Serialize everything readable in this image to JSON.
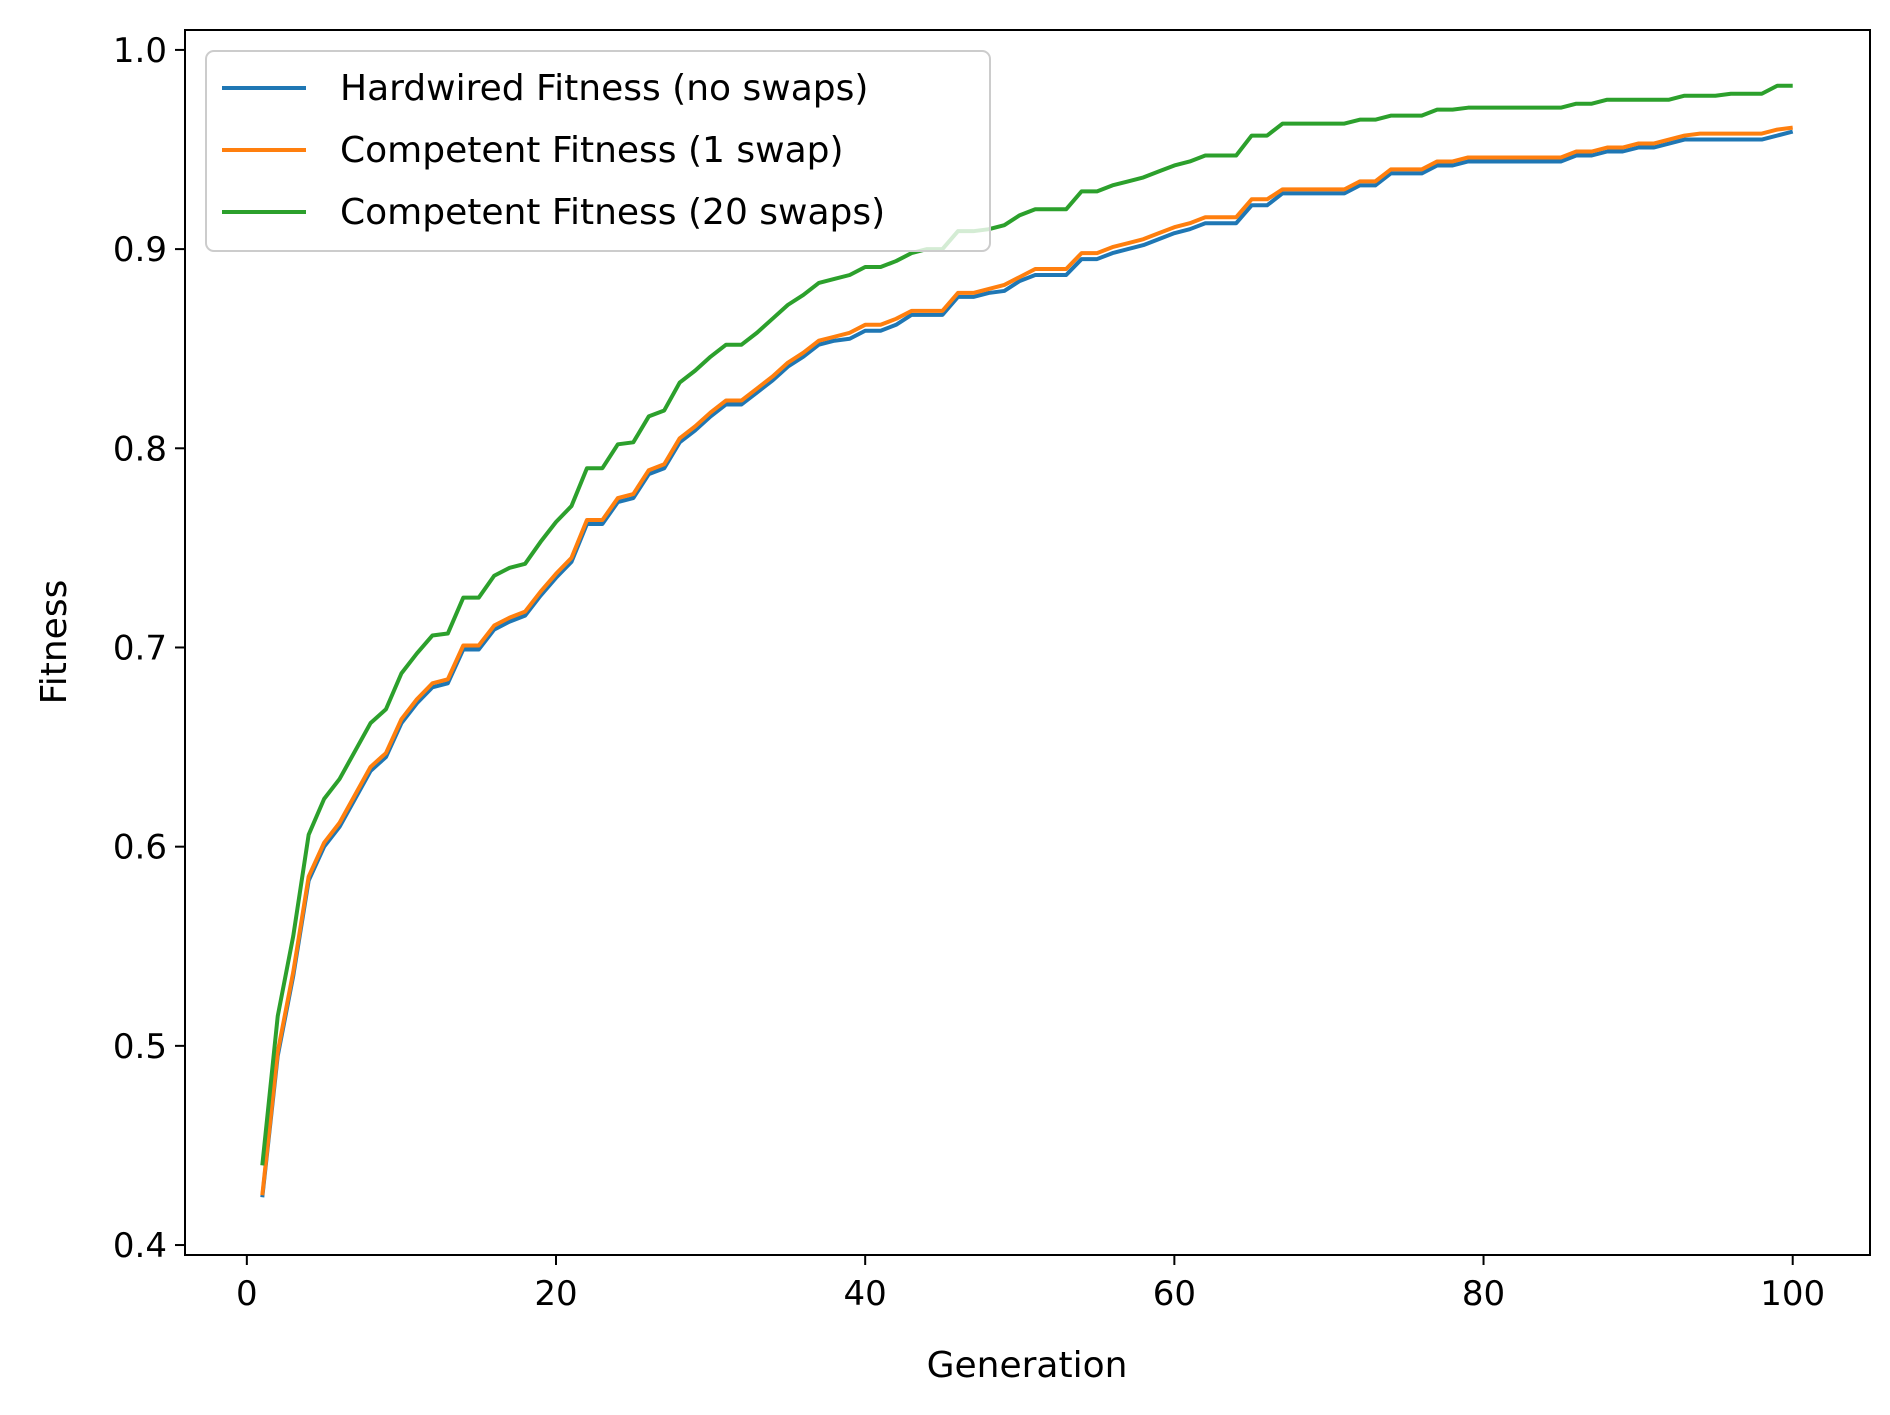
{
  "chart_data": {
    "type": "line",
    "title": "",
    "xlabel": "Generation",
    "ylabel": "Fitness",
    "xlim": [
      -4,
      105
    ],
    "ylim": [
      0.395,
      1.01
    ],
    "xticks": [
      0,
      20,
      40,
      60,
      80,
      100
    ],
    "xtick_labels": [
      "0",
      "20",
      "40",
      "60",
      "80",
      "100"
    ],
    "yticks": [
      0.4,
      0.5,
      0.6,
      0.7,
      0.8,
      0.9,
      1.0
    ],
    "ytick_labels": [
      "0.4",
      "0.5",
      "0.6",
      "0.7",
      "0.8",
      "0.9",
      "1.0"
    ],
    "grid": false,
    "legend_position": "upper-left",
    "series": [
      {
        "name": "Hardwired Fitness (no swaps)",
        "color": "#1f77b4",
        "x": [
          1,
          2,
          3,
          4,
          5,
          6,
          7,
          8,
          9,
          10,
          11,
          12,
          13,
          14,
          15,
          16,
          17,
          18,
          19,
          20,
          21,
          22,
          23,
          24,
          25,
          26,
          27,
          28,
          29,
          30,
          31,
          32,
          33,
          34,
          35,
          36,
          37,
          38,
          39,
          40,
          41,
          42,
          43,
          44,
          45,
          46,
          47,
          48,
          49,
          50,
          51,
          52,
          53,
          54,
          55,
          56,
          57,
          58,
          59,
          60,
          61,
          62,
          63,
          64,
          65,
          66,
          67,
          68,
          69,
          70,
          71,
          72,
          73,
          74,
          75,
          76,
          77,
          78,
          79,
          80,
          81,
          82,
          83,
          84,
          85,
          86,
          87,
          88,
          89,
          90,
          91,
          92,
          93,
          94,
          95,
          96,
          97,
          98,
          99,
          100
        ],
        "values": [
          0.424,
          0.495,
          0.535,
          0.583,
          0.6,
          0.61,
          0.624,
          0.638,
          0.645,
          0.662,
          0.672,
          0.68,
          0.682,
          0.699,
          0.699,
          0.709,
          0.713,
          0.716,
          0.726,
          0.735,
          0.743,
          0.762,
          0.762,
          0.773,
          0.775,
          0.787,
          0.79,
          0.803,
          0.809,
          0.816,
          0.822,
          0.822,
          0.828,
          0.834,
          0.841,
          0.846,
          0.852,
          0.854,
          0.855,
          0.859,
          0.859,
          0.862,
          0.867,
          0.867,
          0.867,
          0.876,
          0.876,
          0.878,
          0.879,
          0.884,
          0.887,
          0.887,
          0.887,
          0.895,
          0.895,
          0.898,
          0.9,
          0.902,
          0.905,
          0.908,
          0.91,
          0.913,
          0.913,
          0.913,
          0.922,
          0.922,
          0.928,
          0.928,
          0.928,
          0.928,
          0.928,
          0.932,
          0.932,
          0.938,
          0.938,
          0.938,
          0.942,
          0.942,
          0.944,
          0.944,
          0.944,
          0.944,
          0.944,
          0.944,
          0.944,
          0.947,
          0.947,
          0.949,
          0.949,
          0.951,
          0.951,
          0.953,
          0.955,
          0.955,
          0.955,
          0.955,
          0.955,
          0.955,
          0.957,
          0.959
        ]
      },
      {
        "name": "Competent Fitness (1 swap)",
        "color": "#ff7f0e",
        "x": [
          1,
          2,
          3,
          4,
          5,
          6,
          7,
          8,
          9,
          10,
          11,
          12,
          13,
          14,
          15,
          16,
          17,
          18,
          19,
          20,
          21,
          22,
          23,
          24,
          25,
          26,
          27,
          28,
          29,
          30,
          31,
          32,
          33,
          34,
          35,
          36,
          37,
          38,
          39,
          40,
          41,
          42,
          43,
          44,
          45,
          46,
          47,
          48,
          49,
          50,
          51,
          52,
          53,
          54,
          55,
          56,
          57,
          58,
          59,
          60,
          61,
          62,
          63,
          64,
          65,
          66,
          67,
          68,
          69,
          70,
          71,
          72,
          73,
          74,
          75,
          76,
          77,
          78,
          79,
          80,
          81,
          82,
          83,
          84,
          85,
          86,
          87,
          88,
          89,
          90,
          91,
          92,
          93,
          94,
          95,
          96,
          97,
          98,
          99,
          100
        ],
        "values": [
          0.425,
          0.497,
          0.537,
          0.585,
          0.602,
          0.612,
          0.626,
          0.64,
          0.647,
          0.664,
          0.674,
          0.682,
          0.684,
          0.701,
          0.701,
          0.711,
          0.715,
          0.718,
          0.728,
          0.737,
          0.745,
          0.764,
          0.764,
          0.775,
          0.777,
          0.789,
          0.792,
          0.805,
          0.811,
          0.818,
          0.824,
          0.824,
          0.83,
          0.836,
          0.843,
          0.848,
          0.854,
          0.856,
          0.858,
          0.862,
          0.862,
          0.865,
          0.869,
          0.869,
          0.869,
          0.878,
          0.878,
          0.88,
          0.882,
          0.886,
          0.89,
          0.89,
          0.89,
          0.898,
          0.898,
          0.901,
          0.903,
          0.905,
          0.908,
          0.911,
          0.913,
          0.916,
          0.916,
          0.916,
          0.925,
          0.925,
          0.93,
          0.93,
          0.93,
          0.93,
          0.93,
          0.934,
          0.934,
          0.94,
          0.94,
          0.94,
          0.944,
          0.944,
          0.946,
          0.946,
          0.946,
          0.946,
          0.946,
          0.946,
          0.946,
          0.949,
          0.949,
          0.951,
          0.951,
          0.953,
          0.953,
          0.955,
          0.957,
          0.958,
          0.958,
          0.958,
          0.958,
          0.958,
          0.96,
          0.961
        ]
      },
      {
        "name": "Competent Fitness (20 swaps)",
        "color": "#2ca02c",
        "x": [
          1,
          2,
          3,
          4,
          5,
          6,
          7,
          8,
          9,
          10,
          11,
          12,
          13,
          14,
          15,
          16,
          17,
          18,
          19,
          20,
          21,
          22,
          23,
          24,
          25,
          26,
          27,
          28,
          29,
          30,
          31,
          32,
          33,
          34,
          35,
          36,
          37,
          38,
          39,
          40,
          41,
          42,
          43,
          44,
          45,
          46,
          47,
          48,
          49,
          50,
          51,
          52,
          53,
          54,
          55,
          56,
          57,
          58,
          59,
          60,
          61,
          62,
          63,
          64,
          65,
          66,
          67,
          68,
          69,
          70,
          71,
          72,
          73,
          74,
          75,
          76,
          77,
          78,
          79,
          80,
          81,
          82,
          83,
          84,
          85,
          86,
          87,
          88,
          89,
          90,
          91,
          92,
          93,
          94,
          95,
          96,
          97,
          98,
          99,
          100
        ],
        "values": [
          0.44,
          0.515,
          0.555,
          0.606,
          0.624,
          0.634,
          0.648,
          0.662,
          0.669,
          0.687,
          0.697,
          0.706,
          0.707,
          0.725,
          0.725,
          0.736,
          0.74,
          0.742,
          0.753,
          0.763,
          0.771,
          0.79,
          0.79,
          0.802,
          0.803,
          0.816,
          0.819,
          0.833,
          0.839,
          0.846,
          0.852,
          0.852,
          0.858,
          0.865,
          0.872,
          0.877,
          0.883,
          0.885,
          0.887,
          0.891,
          0.891,
          0.894,
          0.898,
          0.9,
          0.9,
          0.909,
          0.909,
          0.91,
          0.912,
          0.917,
          0.92,
          0.92,
          0.92,
          0.929,
          0.929,
          0.932,
          0.934,
          0.936,
          0.939,
          0.942,
          0.944,
          0.947,
          0.947,
          0.947,
          0.957,
          0.957,
          0.963,
          0.963,
          0.963,
          0.963,
          0.963,
          0.965,
          0.965,
          0.967,
          0.967,
          0.967,
          0.97,
          0.97,
          0.971,
          0.971,
          0.971,
          0.971,
          0.971,
          0.971,
          0.971,
          0.973,
          0.973,
          0.975,
          0.975,
          0.975,
          0.975,
          0.975,
          0.977,
          0.977,
          0.977,
          0.978,
          0.978,
          0.978,
          0.982,
          0.982
        ]
      }
    ]
  }
}
